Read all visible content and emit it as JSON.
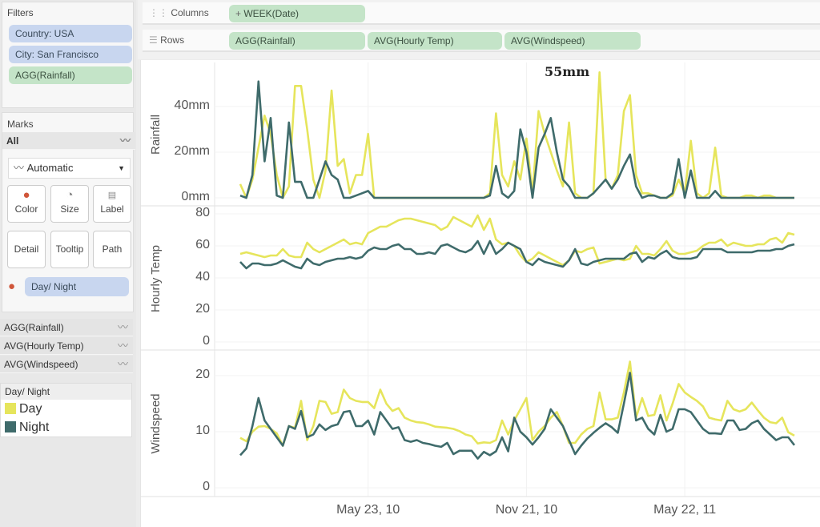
{
  "filters": {
    "title": "Filters",
    "items": [
      "Country: USA",
      "City: San Francisco",
      "AGG(Rainfall)"
    ]
  },
  "marks": {
    "title": "Marks",
    "all_label": "All",
    "mark_type": "Automatic",
    "buttons": [
      "Color",
      "Size",
      "Label",
      "Detail",
      "Tooltip",
      "Path"
    ],
    "color_field": "Day/ Night",
    "measures": [
      "AGG(Rainfall)",
      "AVG(Hourly Temp)",
      "AVG(Windspeed)"
    ]
  },
  "legend": {
    "title": "Day/ Night",
    "items": [
      {
        "label": "Day",
        "color": "#e6e55c"
      },
      {
        "label": "Night",
        "color": "#3f6b6b"
      }
    ]
  },
  "shelves": {
    "columns_label": "Columns",
    "columns_pills": [
      "WEEK(Date)"
    ],
    "rows_label": "Rows",
    "rows_pills": [
      "AGG(Rainfall)",
      "AVG(Hourly Temp)",
      "AVG(Windspeed)"
    ]
  },
  "chart_data": {
    "type": "line",
    "x_tick_labels": [
      "May 23, 10",
      "Nov 21, 10",
      "May 22, 11"
    ],
    "x_tick_dates": [
      "2010-05-23",
      "2010-11-21",
      "2011-05-22"
    ],
    "annotation": "55mm",
    "x": [
      "2009-12-27",
      "2010-01-03",
      "2010-01-10",
      "2010-01-17",
      "2010-01-24",
      "2010-01-31",
      "2010-02-07",
      "2010-02-14",
      "2010-02-21",
      "2010-02-28",
      "2010-03-07",
      "2010-03-14",
      "2010-03-21",
      "2010-03-28",
      "2010-04-04",
      "2010-04-11",
      "2010-04-18",
      "2010-04-25",
      "2010-05-02",
      "2010-05-09",
      "2010-05-16",
      "2010-05-23",
      "2010-05-30",
      "2010-06-06",
      "2010-06-13",
      "2010-06-20",
      "2010-06-27",
      "2010-07-04",
      "2010-07-11",
      "2010-07-18",
      "2010-07-25",
      "2010-08-01",
      "2010-08-08",
      "2010-08-15",
      "2010-08-22",
      "2010-08-29",
      "2010-09-05",
      "2010-09-12",
      "2010-09-19",
      "2010-09-26",
      "2010-10-03",
      "2010-10-10",
      "2010-10-17",
      "2010-10-24",
      "2010-10-31",
      "2010-11-07",
      "2010-11-14",
      "2010-11-21",
      "2010-11-28",
      "2010-12-05",
      "2010-12-12",
      "2010-12-19",
      "2010-12-26",
      "2011-01-02",
      "2011-01-09",
      "2011-01-16",
      "2011-01-23",
      "2011-01-30",
      "2011-02-06",
      "2011-02-13",
      "2011-02-20",
      "2011-02-27",
      "2011-03-06",
      "2011-03-13",
      "2011-03-20",
      "2011-03-27",
      "2011-04-03",
      "2011-04-10",
      "2011-04-17",
      "2011-04-24",
      "2011-05-01",
      "2011-05-08",
      "2011-05-15",
      "2011-05-22",
      "2011-05-29",
      "2011-06-05",
      "2011-06-12",
      "2011-06-19",
      "2011-06-26",
      "2011-07-03",
      "2011-07-10",
      "2011-07-17",
      "2011-07-24",
      "2011-07-31",
      "2011-08-07",
      "2011-08-14",
      "2011-08-21",
      "2011-08-28",
      "2011-09-04",
      "2011-09-11",
      "2011-09-18",
      "2011-09-25"
    ],
    "panels": [
      {
        "ylabel": "Rainfall",
        "yticks": [
          0,
          20,
          40
        ],
        "ytick_labels": [
          "0mm",
          "20mm",
          "40mm"
        ],
        "series": [
          {
            "name": "Day",
            "values": [
              6,
              0,
              8,
              22,
              36,
              28,
              10,
              0,
              5,
              49,
              49,
              30,
              8,
              0,
              12,
              47,
              14,
              17,
              2,
              10,
              10,
              28,
              0,
              0,
              0,
              0,
              0,
              0,
              0,
              0,
              0,
              0,
              0,
              0,
              0,
              0,
              0,
              0,
              0,
              0,
              0,
              2,
              37,
              10,
              5,
              16,
              8,
              26,
              2,
              38,
              28,
              20,
              12,
              5,
              33,
              2,
              0,
              0,
              2,
              55,
              8,
              4,
              10,
              38,
              45,
              10,
              2,
              2,
              1,
              0,
              0,
              1,
              8,
              2,
              25,
              2,
              0,
              2,
              22,
              1,
              0,
              0,
              0,
              1,
              1,
              0,
              1,
              1,
              0,
              0,
              0,
              0
            ]
          },
          {
            "name": "Night",
            "values": [
              1,
              0,
              10,
              51,
              16,
              35,
              1,
              0,
              33,
              7,
              7,
              0,
              0,
              8,
              16,
              10,
              8,
              0,
              0,
              1,
              2,
              3,
              0,
              0,
              0,
              0,
              0,
              0,
              0,
              0,
              0,
              0,
              0,
              0,
              0,
              0,
              0,
              0,
              0,
              0,
              0,
              1,
              14,
              2,
              0,
              3,
              30,
              20,
              0,
              22,
              28,
              35,
              20,
              8,
              5,
              0,
              0,
              0,
              2,
              5,
              8,
              4,
              8,
              14,
              19,
              5,
              0,
              1,
              1,
              0,
              0,
              2,
              17,
              0,
              12,
              0,
              0,
              0,
              3,
              0,
              0,
              0,
              0,
              0,
              0,
              0,
              0,
              0,
              0,
              0,
              0,
              0
            ]
          }
        ]
      },
      {
        "ylabel": "Hourly Temp",
        "yticks": [
          0,
          20,
          40,
          60,
          80
        ],
        "ytick_labels": [
          "0",
          "20",
          "40",
          "60",
          "80"
        ],
        "series": [
          {
            "name": "Day",
            "values": [
              55,
              56,
              55,
              54,
              53,
              54,
              54,
              58,
              54,
              53,
              53,
              62,
              58,
              56,
              58,
              60,
              62,
              64,
              61,
              62,
              61,
              68,
              70,
              72,
              72,
              74,
              76,
              77,
              77,
              76,
              75,
              74,
              73,
              70,
              72,
              78,
              76,
              74,
              72,
              79,
              70,
              77,
              64,
              61,
              62,
              60,
              54,
              50,
              52,
              56,
              54,
              52,
              50,
              48,
              51,
              57,
              56,
              58,
              59,
              49,
              50,
              51,
              52,
              51,
              52,
              60,
              55,
              55,
              54,
              58,
              63,
              57,
              55,
              55,
              56,
              57,
              60,
              62,
              62,
              64,
              60,
              62,
              61,
              60,
              60,
              61,
              61,
              64,
              65,
              62,
              68,
              67
            ]
          },
          {
            "name": "Night",
            "values": [
              50,
              46,
              49,
              49,
              48,
              48,
              49,
              51,
              49,
              47,
              46,
              52,
              49,
              48,
              50,
              51,
              52,
              52,
              53,
              52,
              53,
              57,
              59,
              58,
              58,
              60,
              61,
              58,
              58,
              55,
              55,
              56,
              55,
              60,
              61,
              59,
              57,
              56,
              58,
              63,
              55,
              63,
              55,
              58,
              62,
              60,
              58,
              50,
              48,
              52,
              50,
              49,
              48,
              47,
              51,
              58,
              49,
              48,
              50,
              51,
              52,
              52,
              52,
              52,
              55,
              56,
              50,
              53,
              52,
              55,
              57,
              53,
              52,
              52,
              52,
              53,
              58,
              58,
              58,
              58,
              56,
              56,
              56,
              56,
              56,
              57,
              57,
              57,
              58,
              58,
              60,
              61
            ]
          }
        ]
      },
      {
        "ylabel": "Windspeed",
        "yticks": [
          0,
          10,
          20
        ],
        "ytick_labels": [
          "0",
          "10",
          "20"
        ],
        "series": [
          {
            "name": "Day",
            "values": [
              8.9,
              8.3,
              10,
              10.9,
              11,
              10.5,
              9.7,
              7.5,
              11,
              10.7,
              15.5,
              8.5,
              11,
              15.5,
              15.3,
              13.2,
              13.5,
              17.5,
              16,
              15.5,
              15.3,
              15.3,
              14.2,
              17.5,
              15,
              13.7,
              14.2,
              12.5,
              12,
              11.7,
              11.6,
              11.3,
              10.9,
              10.8,
              10.7,
              10.5,
              10.1,
              9.5,
              9.2,
              7.9,
              8.1,
              8,
              8.5,
              12,
              9.5,
              12,
              14,
              16,
              8.5,
              10,
              11,
              12.5,
              13.5,
              11,
              8,
              8,
              9.5,
              10.5,
              11,
              17,
              12.2,
              12.2,
              12.5,
              17,
              22.5,
              12.5,
              16,
              12.8,
              13,
              16.5,
              12,
              15,
              18.5,
              17,
              16.2,
              15.5,
              14.5,
              12.5,
              12.2,
              12,
              15.5,
              14,
              13.6,
              14,
              15.2,
              13.8,
              12.5,
              11.7,
              11.5,
              12.5,
              9.9,
              9.3
            ]
          },
          {
            "name": "Night",
            "values": [
              5.8,
              7,
              11,
              16,
              12,
              10.5,
              9,
              7.5,
              11,
              10.5,
              13.7,
              9,
              9.5,
              11.3,
              10.3,
              11,
              11.3,
              13.5,
              13.7,
              11,
              11,
              12,
              9.5,
              13.5,
              12,
              10.5,
              10.8,
              8.5,
              8.2,
              8.5,
              8,
              7.8,
              7.5,
              7.3,
              8,
              6,
              6.6,
              6.6,
              6.6,
              5.2,
              6.4,
              5.8,
              6.5,
              9,
              6.5,
              12.5,
              10,
              9,
              7.7,
              9,
              10.5,
              14,
              12.5,
              11,
              8.5,
              6,
              7.5,
              8.8,
              9.8,
              10.7,
              11.5,
              10.8,
              9.8,
              15,
              20.5,
              12,
              12.5,
              10.5,
              9.5,
              13,
              10,
              10.5,
              14,
              14,
              13.5,
              12,
              10.5,
              9.7,
              9.7,
              9.6,
              12,
              12,
              10.3,
              10.5,
              11.5,
              12,
              10.5,
              9.5,
              8.5,
              9,
              9,
              7.6
            ]
          }
        ]
      }
    ]
  }
}
